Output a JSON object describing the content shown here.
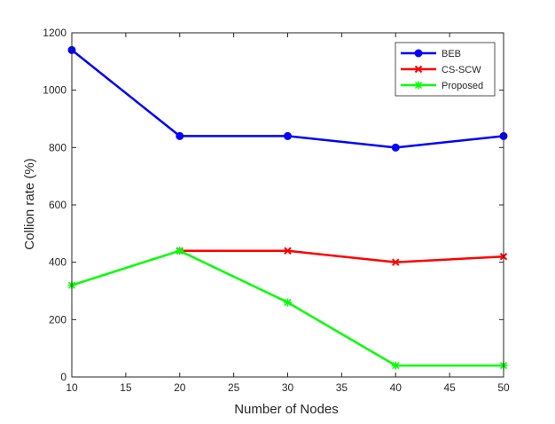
{
  "chart_data": {
    "type": "line",
    "title": "",
    "xlabel": "Number of Nodes",
    "ylabel": "Collion rate (%)",
    "xlim": [
      10,
      50
    ],
    "ylim": [
      0,
      1200
    ],
    "xticks": [
      10,
      15,
      20,
      25,
      30,
      35,
      40,
      45,
      50
    ],
    "yticks": [
      0,
      200,
      400,
      600,
      800,
      1000,
      1200
    ],
    "grid": false,
    "legend_position": "top-right",
    "series": [
      {
        "name": "BEB",
        "color": "#0000ff",
        "marker": "circle",
        "x": [
          10,
          20,
          30,
          40,
          50
        ],
        "y": [
          1140,
          840,
          840,
          800,
          840
        ]
      },
      {
        "name": "CS-SCW",
        "color": "#ff0000",
        "marker": "x",
        "x": [
          20,
          30,
          40,
          50
        ],
        "y": [
          440,
          440,
          400,
          420
        ]
      },
      {
        "name": "Proposed",
        "color": "#00ff00",
        "marker": "star",
        "x": [
          10,
          20,
          30,
          40,
          50
        ],
        "y": [
          320,
          440,
          260,
          40,
          40
        ]
      }
    ]
  }
}
